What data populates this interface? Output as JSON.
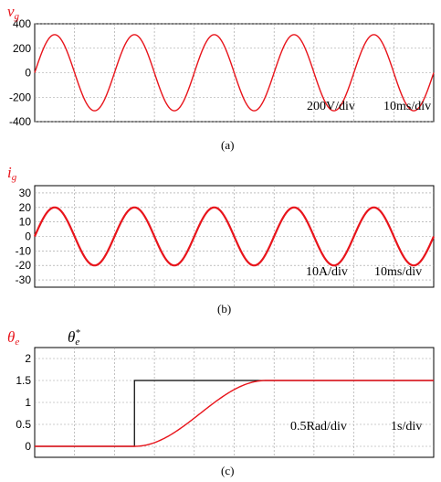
{
  "chart_data": [
    {
      "type": "line",
      "signal_symbol": "v",
      "signal_sub": "g",
      "ylim": [
        -400,
        400
      ],
      "yticks": [
        400,
        200,
        0,
        -200,
        -400
      ],
      "grid": true,
      "series": [
        {
          "amplitude": 311,
          "frequency_hz": 50,
          "time_range_ms": [
            0,
            100
          ],
          "color": "#e8141b"
        }
      ],
      "annotations": [
        "200V/div",
        "10ms/div"
      ],
      "caption": "(a)"
    },
    {
      "type": "line",
      "signal_symbol": "i",
      "signal_sub": "g",
      "ylim": [
        -35,
        35
      ],
      "yticks": [
        30,
        20,
        10,
        0,
        -10,
        -20,
        -30
      ],
      "grid": true,
      "series": [
        {
          "amplitude": 20,
          "frequency_hz": 50,
          "time_range_ms": [
            0,
            100
          ],
          "color": "#e8141b"
        }
      ],
      "annotations": [
        "10A/div",
        "10ms/div"
      ],
      "caption": "(b)"
    },
    {
      "type": "line",
      "signal_symbol": "θ",
      "signal_sub": "e",
      "ref_symbol": "θ",
      "ref_sub": "e",
      "ref_sup": "*",
      "ylim": [
        -0.25,
        2.25
      ],
      "yticks": [
        2.0,
        1.5,
        1.0,
        0.5,
        0
      ],
      "grid": true,
      "time_range_s": [
        0,
        10
      ],
      "series": [
        {
          "role": "reference",
          "color": "#000000",
          "step_time_s": 2.5,
          "value_before": 0,
          "value_after": 1.5
        },
        {
          "role": "estimate",
          "color": "#e8141b",
          "start_time_s": 2.5,
          "settle_time_s": 5.8,
          "value_before": 0,
          "value_after": 1.5
        }
      ],
      "annotations": [
        "0.5Rad/div",
        "1s/div"
      ],
      "caption": "(c)"
    }
  ]
}
